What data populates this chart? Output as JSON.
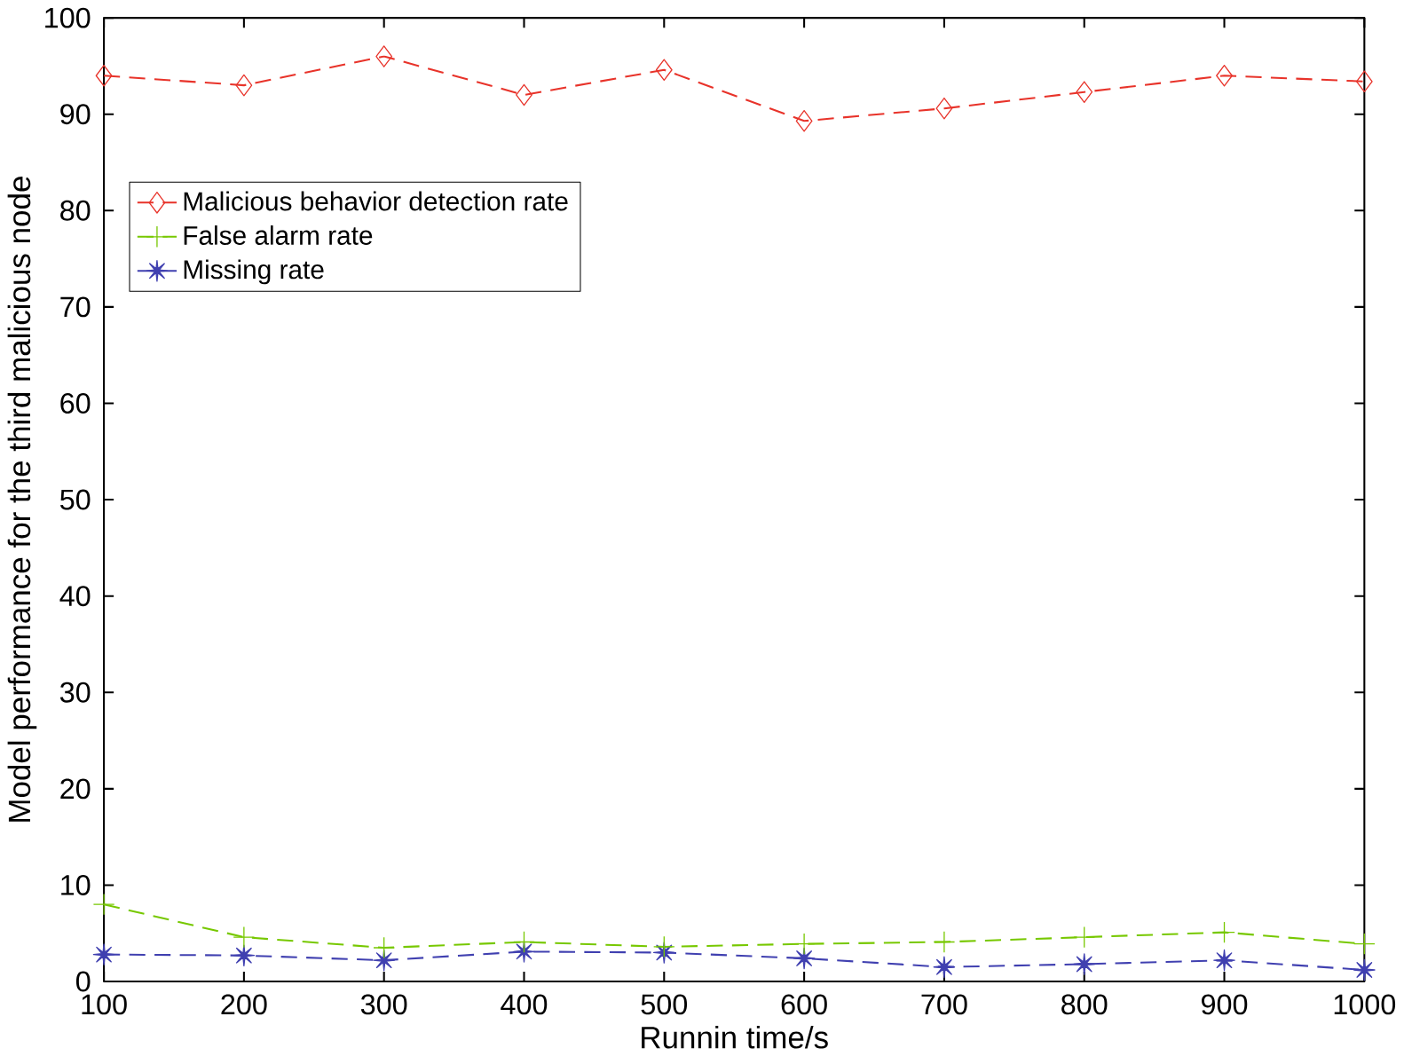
{
  "chart_data": {
    "type": "line",
    "xlabel": "Runnin time/s",
    "ylabel": "Model performance for the third malicious node",
    "x": [
      100,
      200,
      300,
      400,
      500,
      600,
      700,
      800,
      900,
      1000
    ],
    "series": [
      {
        "name": "Malicious behavior detection rate",
        "color": "#e8332a",
        "marker": "diamond",
        "values": [
          94.0,
          93.0,
          96.0,
          92.0,
          94.6,
          89.3,
          90.6,
          92.3,
          94.0,
          93.4
        ]
      },
      {
        "name": "False alarm rate",
        "color": "#77c800",
        "marker": "cross",
        "values": [
          8.0,
          4.6,
          3.5,
          4.1,
          3.6,
          3.9,
          4.1,
          4.6,
          5.1,
          3.9
        ]
      },
      {
        "name": "Missing rate",
        "color": "#4040b0",
        "marker": "star",
        "values": [
          2.8,
          2.7,
          2.2,
          3.1,
          3.0,
          2.4,
          1.5,
          1.8,
          2.2,
          1.2
        ]
      }
    ],
    "xlim": [
      100,
      1000
    ],
    "ylim": [
      0,
      100
    ],
    "xticks": [
      100,
      200,
      300,
      400,
      500,
      600,
      700,
      800,
      900,
      1000
    ],
    "yticks": [
      0,
      10,
      20,
      30,
      40,
      50,
      60,
      70,
      80,
      90,
      100
    ],
    "grid": false,
    "legend": "top left",
    "line_style": "dashed"
  }
}
